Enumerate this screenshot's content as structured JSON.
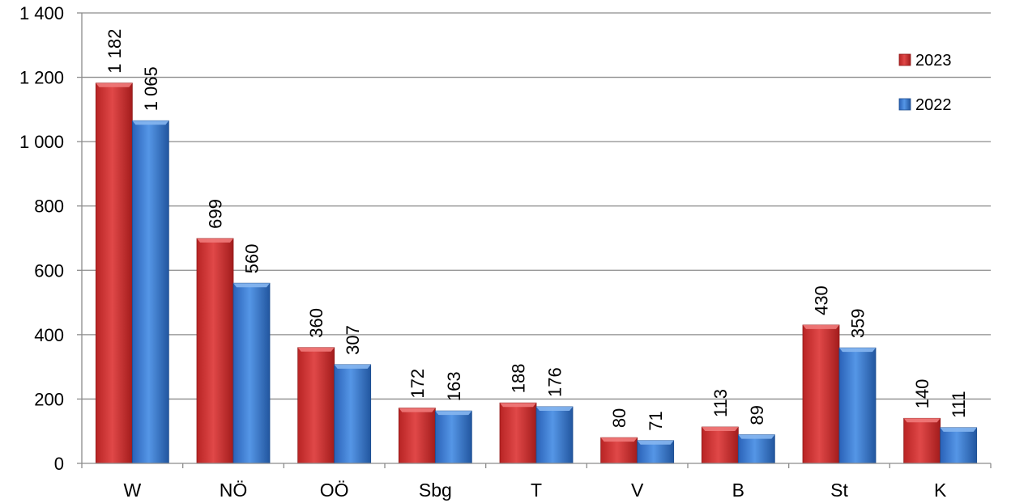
{
  "chart_data": {
    "type": "bar",
    "categories": [
      "W",
      "NÖ",
      "OÖ",
      "Sbg",
      "T",
      "V",
      "B",
      "St",
      "K"
    ],
    "series": [
      {
        "name": "2023",
        "color": "#d63a3a",
        "values": [
          1182,
          699,
          360,
          172,
          188,
          80,
          113,
          430,
          140
        ],
        "labels": [
          "1 182",
          "699",
          "360",
          "172",
          "188",
          "80",
          "113",
          "430",
          "140"
        ]
      },
      {
        "name": "2022",
        "color": "#3f7fd6",
        "values": [
          1065,
          560,
          307,
          163,
          176,
          71,
          89,
          359,
          111
        ],
        "labels": [
          "1 065",
          "560",
          "307",
          "163",
          "176",
          "71",
          "89",
          "359",
          "111"
        ]
      }
    ],
    "ylim": [
      0,
      1400
    ],
    "yticks": [
      0,
      200,
      400,
      600,
      800,
      1000,
      1200,
      1400
    ],
    "ytick_labels": [
      "0",
      "200",
      "400",
      "600",
      "800",
      "1 000",
      "1 200",
      "1 400"
    ],
    "grid": true,
    "legend": "top-right"
  }
}
